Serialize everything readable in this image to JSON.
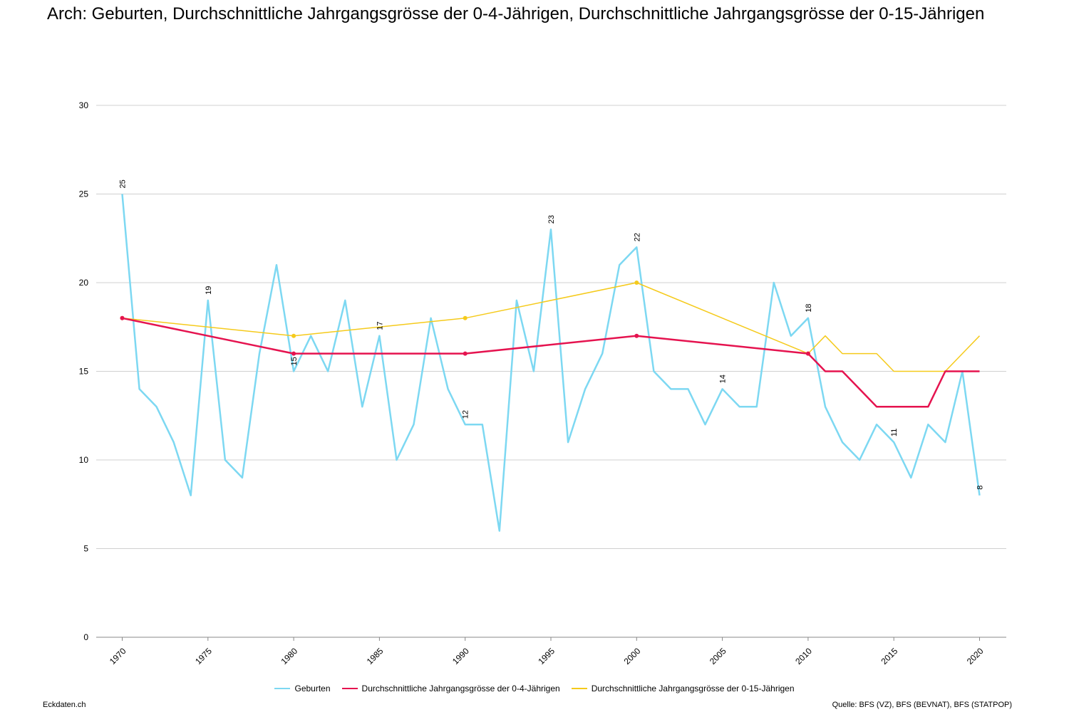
{
  "title": "Arch: Geburten, Durchschnittliche Jahrgangsgrösse der 0-4-Jährigen, Durchschnittliche Jahrgangsgrösse der 0-15-Jährigen",
  "footer_left": "Eckdaten.ch",
  "footer_right": "Quelle: BFS (VZ), BFS (BEVNAT), BFS (STATPOP)",
  "chart_data": {
    "type": "line",
    "xlim": [
      1970,
      2020
    ],
    "ylim": [
      0,
      30
    ],
    "yticks": [
      0,
      5,
      10,
      15,
      20,
      25,
      30
    ],
    "xticks": [
      1970,
      1975,
      1980,
      1985,
      1990,
      1995,
      2000,
      2005,
      2010,
      2015,
      2020
    ],
    "grid": true,
    "legend_position": "bottom",
    "series": [
      {
        "name": "Geburten",
        "color": "#7dd8f2",
        "x": [
          1970,
          1971,
          1972,
          1973,
          1974,
          1975,
          1976,
          1977,
          1978,
          1979,
          1980,
          1981,
          1982,
          1983,
          1984,
          1985,
          1986,
          1987,
          1988,
          1989,
          1990,
          1991,
          1992,
          1993,
          1994,
          1995,
          1996,
          1997,
          1998,
          1999,
          2000,
          2001,
          2002,
          2003,
          2004,
          2005,
          2006,
          2007,
          2008,
          2009,
          2010,
          2011,
          2012,
          2013,
          2014,
          2015,
          2016,
          2017,
          2018,
          2019,
          2020
        ],
        "values": [
          25,
          14,
          13,
          11,
          8,
          19,
          10,
          9,
          16,
          21,
          15,
          17,
          15,
          19,
          13,
          17,
          10,
          12,
          18,
          14,
          12,
          12,
          6,
          19,
          15,
          23,
          11,
          14,
          16,
          21,
          22,
          15,
          14,
          14,
          12,
          14,
          13,
          13,
          20,
          17,
          18,
          13,
          11,
          10,
          12,
          11,
          9,
          12,
          11,
          15,
          8
        ],
        "labels": [
          {
            "x": 1970,
            "y": 25,
            "text": "25"
          },
          {
            "x": 1975,
            "y": 19,
            "text": "19"
          },
          {
            "x": 1980,
            "y": 15,
            "text": "15"
          },
          {
            "x": 1985,
            "y": 17,
            "text": "17"
          },
          {
            "x": 1990,
            "y": 12,
            "text": "12"
          },
          {
            "x": 1995,
            "y": 23,
            "text": "23"
          },
          {
            "x": 2000,
            "y": 22,
            "text": "22"
          },
          {
            "x": 2005,
            "y": 14,
            "text": "14"
          },
          {
            "x": 2010,
            "y": 18,
            "text": "18"
          },
          {
            "x": 2015,
            "y": 11,
            "text": "11"
          },
          {
            "x": 2020,
            "y": 8,
            "text": "8"
          }
        ]
      },
      {
        "name": "Durchschnittliche Jahrgangsgrösse der 0-4-Jährigen",
        "color": "#e5134f",
        "x": [
          1970,
          1980,
          1990,
          2000,
          2010,
          2011,
          2012,
          2013,
          2014,
          2015,
          2016,
          2017,
          2018,
          2019,
          2020
        ],
        "values": [
          18,
          16,
          16,
          17,
          16,
          15,
          15,
          14,
          13,
          13,
          13,
          13,
          15,
          15,
          15
        ],
        "markers": [
          1970,
          1980,
          1990,
          2000,
          2010
        ]
      },
      {
        "name": "Durchschnittliche Jahrgangsgrösse der 0-15-Jährigen",
        "color": "#f5ca1b",
        "x": [
          1970,
          1980,
          1990,
          2000,
          2010,
          2011,
          2012,
          2013,
          2014,
          2015,
          2016,
          2017,
          2018,
          2019,
          2020
        ],
        "values": [
          18,
          17,
          18,
          20,
          16,
          17,
          16,
          16,
          16,
          15,
          15,
          15,
          15,
          16,
          17
        ],
        "markers": [
          1970,
          1980,
          1990,
          2000,
          2010
        ]
      }
    ]
  }
}
